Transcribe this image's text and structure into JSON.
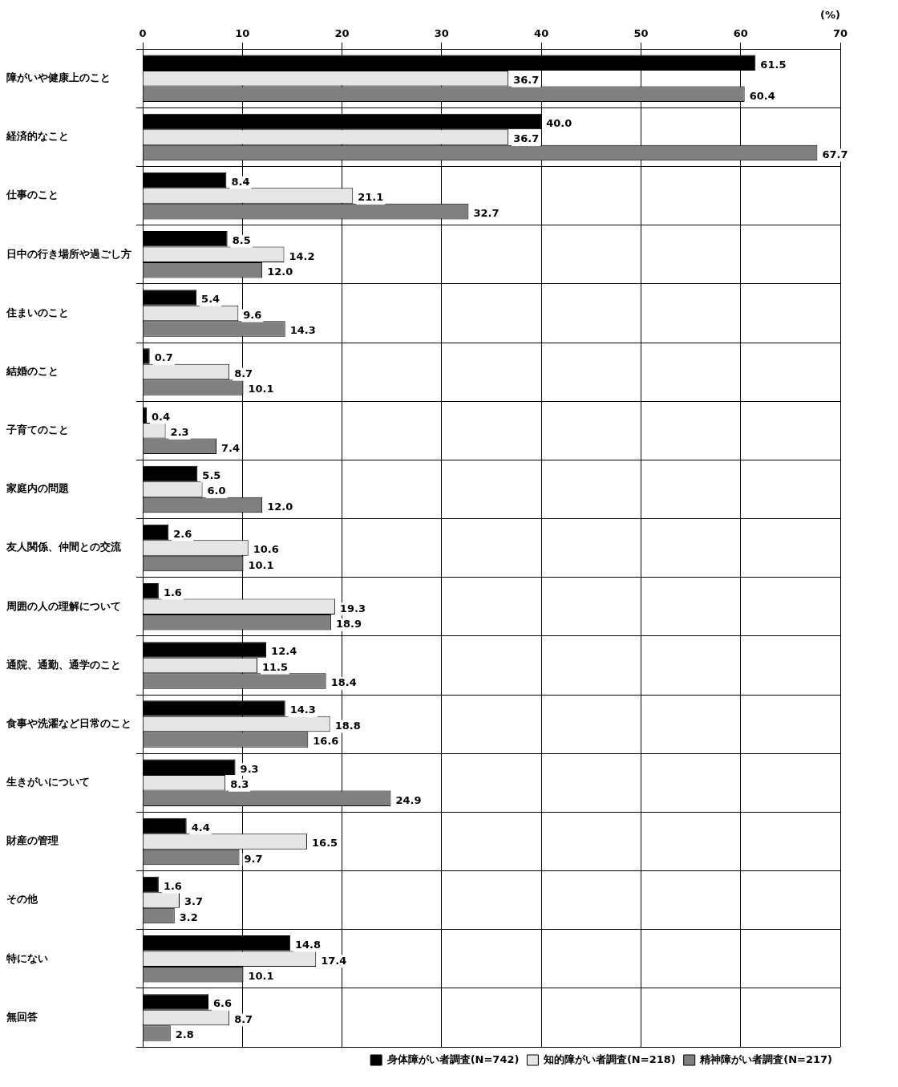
{
  "chart_data": {
    "type": "bar",
    "orientation": "horizontal",
    "xlabel": "(%)",
    "categories": [
      "障がいや健康上のこと",
      "経済的なこと",
      "仕事のこと",
      "日中の行き場所や過ごし方",
      "住まいのこと",
      "結婚のこと",
      "子育てのこと",
      "家庭内の問題",
      "友人関係、仲間との交流",
      "周囲の人の理解について",
      "通院、通勤、通学のこと",
      "食事や洗濯など日常のこと",
      "生きがいについて",
      "財産の管理",
      "その他",
      "特にない",
      "無回答"
    ],
    "series": [
      {
        "name": "身体障がい者調査(N=742)",
        "color": "#000000",
        "values": [
          61.5,
          40,
          8.4,
          8.5,
          5.4,
          0.7,
          0.4,
          5.5,
          2.6,
          1.6,
          12.4,
          14.3,
          9.3,
          4.4,
          1.6,
          14.8,
          6.6
        ],
        "value_labels": [
          "61.5",
          "40.0",
          "8.4",
          "8.5",
          "5.4",
          "0.7",
          "0.4",
          "5.5",
          "2.6",
          "1.6",
          "12.4",
          "14.3",
          "9.3",
          "4.4",
          "1.6",
          "14.8",
          "6.6"
        ]
      },
      {
        "name": "知的障がい者調査(N=218)",
        "color": "#e6e6e6",
        "values": [
          36.7,
          36.7,
          21.1,
          14.2,
          9.6,
          8.7,
          2.3,
          6,
          10.6,
          19.3,
          11.5,
          18.8,
          8.3,
          16.5,
          3.7,
          17.4,
          8.7
        ],
        "value_labels": [
          "36.7",
          "36.7",
          "21.1",
          "14.2",
          "9.6",
          "8.7",
          "2.3",
          "6.0",
          "10.6",
          "19.3",
          "11.5",
          "18.8",
          "8.3",
          "16.5",
          "3.7",
          "17.4",
          "8.7"
        ]
      },
      {
        "name": "精神障がい者調査(N=217)",
        "color": "#808080",
        "values": [
          60.4,
          67.7,
          32.7,
          12,
          14.3,
          10.1,
          7.4,
          12,
          10.1,
          18.9,
          18.4,
          16.6,
          24.9,
          9.7,
          3.2,
          10.1,
          2.8
        ],
        "value_labels": [
          "60.4",
          "67.7",
          "32.7",
          "12.0",
          "14.3",
          "10.1",
          "7.4",
          "12.0",
          "10.1",
          "18.9",
          "18.4",
          "16.6",
          "24.9",
          "9.7",
          "3.2",
          "10.1",
          "2.8"
        ]
      }
    ],
    "xlim": [
      0,
      70
    ],
    "xticks": [
      0,
      10,
      20,
      30,
      40,
      50,
      60,
      70
    ],
    "grid": true,
    "legend": "bottom right"
  }
}
